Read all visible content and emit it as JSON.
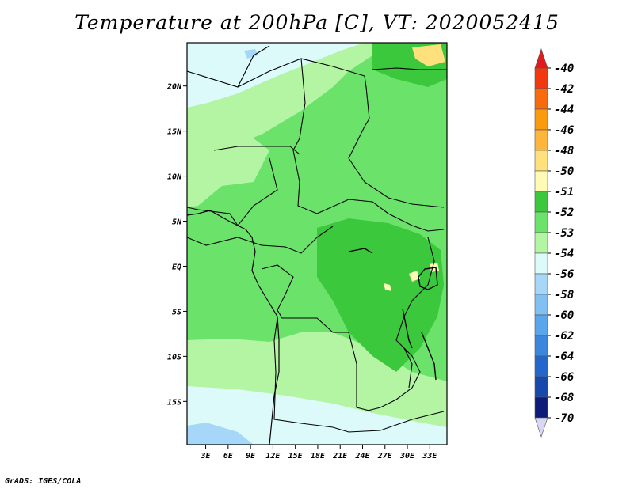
{
  "chart_data": {
    "type": "heatmap",
    "title": "Temperature at 200hPa [C], VT: 2020052415",
    "x_tick_labels": [
      "3E",
      "6E",
      "9E",
      "12E",
      "15E",
      "18E",
      "21E",
      "24E",
      "27E",
      "30E",
      "33E"
    ],
    "x_tick_values": [
      3,
      6,
      9,
      12,
      15,
      18,
      21,
      24,
      27,
      30,
      33
    ],
    "y_tick_labels": [
      "20N",
      "15N",
      "10N",
      "5N",
      "EQ",
      "5S",
      "10S",
      "15S"
    ],
    "y_tick_values": [
      20,
      15,
      10,
      5,
      0,
      -5,
      -10,
      -15
    ],
    "xlim": [
      0.5,
      35.3
    ],
    "ylim": [
      -19.8,
      24.8
    ],
    "colorbar": {
      "labels": [
        "-40",
        "-42",
        "-44",
        "-46",
        "-48",
        "-50",
        "-51",
        "-52",
        "-53",
        "-54",
        "-56",
        "-58",
        "-60",
        "-62",
        "-64",
        "-66",
        "-68",
        "-70"
      ],
      "colors": [
        "#e31a1c",
        "#f2380f",
        "#f76b0d",
        "#fb9a0e",
        "#fdb53c",
        "#fee17c",
        "#fffbb4",
        "#3cc83c",
        "#6be36b",
        "#b4f5a4",
        "#dcfafa",
        "#a6d7f8",
        "#80c0f2",
        "#59a6ec",
        "#3b87dd",
        "#2467cc",
        "#1748ac",
        "#0c1c78",
        "#090a50",
        "#d8d8f4"
      ]
    },
    "regions": [
      {
        "name": "-54 band",
        "level": "-54"
      },
      {
        "name": "-53 band",
        "level": "-53"
      },
      {
        "name": "-52 band",
        "level": "-52"
      },
      {
        "name": "-51 band",
        "level": "-51"
      },
      {
        "name": "-56 band",
        "level": "-56"
      }
    ]
  },
  "credit": "GrADS: IGES/COLA"
}
